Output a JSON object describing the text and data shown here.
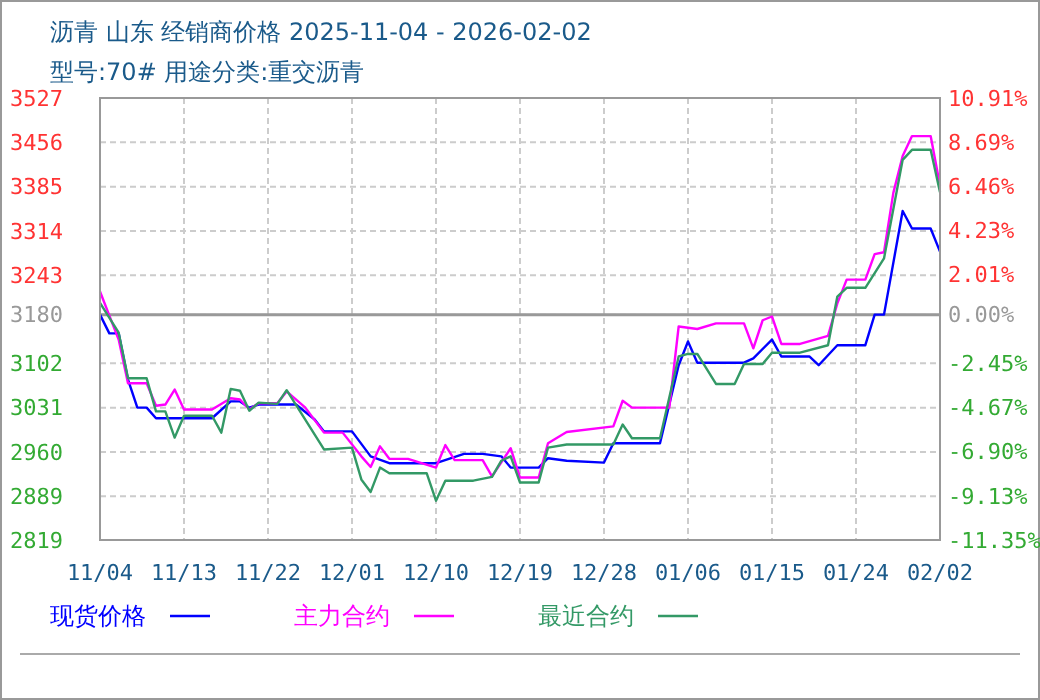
{
  "chart_data": {
    "type": "line",
    "title": "沥青  山东 经销商价格 2025-11-04 - 2026-02-02",
    "subtitle": "型号:70# 用途分类:重交沥青",
    "xlim": [
      "2025-11-04",
      "2026-02-02"
    ],
    "xticks": [
      {
        "value": "2025-11-04",
        "label": "11/04"
      },
      {
        "value": "2025-11-13",
        "label": "11/13"
      },
      {
        "value": "2025-11-22",
        "label": "11/22"
      },
      {
        "value": "2025-12-01",
        "label": "12/01"
      },
      {
        "value": "2025-12-10",
        "label": "12/10"
      },
      {
        "value": "2025-12-19",
        "label": "12/19"
      },
      {
        "value": "2025-12-28",
        "label": "12/28"
      },
      {
        "value": "2026-01-06",
        "label": "01/06"
      },
      {
        "value": "2026-01-15",
        "label": "01/15"
      },
      {
        "value": "2026-01-24",
        "label": "01/24"
      },
      {
        "value": "2026-02-02",
        "label": "02/02"
      }
    ],
    "ylim": [
      2819,
      3527
    ],
    "yticks": [
      2819,
      2889,
      2960,
      3031,
      3102,
      3180,
      3243,
      3314,
      3385,
      3456,
      3527
    ],
    "y2lim": [
      -11.35,
      10.91
    ],
    "y2ticks": [
      {
        "value": -11.35,
        "label": "-11.35%"
      },
      {
        "value": -9.13,
        "label": "-9.13%"
      },
      {
        "value": -6.9,
        "label": "-6.90%"
      },
      {
        "value": -4.67,
        "label": "-4.67%"
      },
      {
        "value": -2.45,
        "label": "-2.45%"
      },
      {
        "value": 0,
        "label": "0.00%"
      },
      {
        "value": 2.01,
        "label": "2.01%"
      },
      {
        "value": 4.23,
        "label": "4.23%"
      },
      {
        "value": 6.46,
        "label": "6.46%"
      },
      {
        "value": 8.69,
        "label": "8.69%"
      },
      {
        "value": 10.91,
        "label": "10.91%"
      }
    ],
    "grid": true,
    "legend": "bottom",
    "marker": "none",
    "line_style": "solid",
    "ref_lines": [
      {
        "axis": "y",
        "value": 3180,
        "color": "#999999"
      }
    ],
    "series": [
      {
        "name": "现货价格",
        "color": "#0000ff",
        "x": [
          "2025-11-04",
          "2025-11-05",
          "2025-11-06",
          "2025-11-07",
          "2025-11-08",
          "2025-11-09",
          "2025-11-10",
          "2025-11-16",
          "2025-11-18",
          "2025-11-19",
          "2025-11-20",
          "2025-11-21",
          "2025-11-25",
          "2025-11-27",
          "2025-11-28",
          "2025-12-01",
          "2025-12-03",
          "2025-12-05",
          "2025-12-10",
          "2025-12-13",
          "2025-12-15",
          "2025-12-17",
          "2025-12-18",
          "2025-12-21",
          "2025-12-22",
          "2025-12-24",
          "2025-12-28",
          "2025-12-29",
          "2026-01-03",
          "2026-01-05",
          "2026-01-06",
          "2026-01-07",
          "2026-01-12",
          "2026-01-13",
          "2026-01-15",
          "2026-01-16",
          "2026-01-19",
          "2026-01-20",
          "2026-01-22",
          "2026-01-25",
          "2026-01-26",
          "2026-01-27",
          "2026-01-29",
          "2026-01-30",
          "2026-02-01",
          "2026-02-02"
        ],
        "values": [
          3180,
          3150,
          3150,
          3076,
          3031,
          3031,
          3014,
          3014,
          3041,
          3041,
          3031,
          3036,
          3036,
          3012,
          2993,
          2993,
          2953,
          2942,
          2942,
          2957,
          2957,
          2953,
          2935,
          2935,
          2950,
          2946,
          2943,
          2974,
          2974,
          3099,
          3137,
          3103,
          3103,
          3110,
          3140,
          3113,
          3113,
          3099,
          3131,
          3131,
          3180,
          3180,
          3346,
          3318,
          3318,
          3281
        ]
      },
      {
        "name": "主力合约",
        "color": "#ff00ff",
        "x": [
          "2025-11-04",
          "2025-11-06",
          "2025-11-07",
          "2025-11-09",
          "2025-11-10",
          "2025-11-11",
          "2025-11-12",
          "2025-11-13",
          "2025-11-16",
          "2025-11-18",
          "2025-11-19",
          "2025-11-20",
          "2025-11-21",
          "2025-11-23",
          "2025-11-24",
          "2025-11-26",
          "2025-11-28",
          "2025-11-30",
          "2025-12-02",
          "2025-12-03",
          "2025-12-04",
          "2025-12-05",
          "2025-12-07",
          "2025-12-10",
          "2025-12-11",
          "2025-12-12",
          "2025-12-15",
          "2025-12-16",
          "2025-12-18",
          "2025-12-19",
          "2025-12-21",
          "2025-12-22",
          "2025-12-24",
          "2025-12-29",
          "2025-12-30",
          "2025-12-31",
          "2026-01-04",
          "2026-01-05",
          "2026-01-07",
          "2026-01-09",
          "2026-01-12",
          "2026-01-13",
          "2026-01-14",
          "2026-01-15",
          "2026-01-16",
          "2026-01-18",
          "2026-01-21",
          "2026-01-22",
          "2026-01-23",
          "2026-01-25",
          "2026-01-26",
          "2026-01-27",
          "2026-01-28",
          "2026-01-29",
          "2026-01-30",
          "2026-02-01",
          "2026-02-02"
        ],
        "values": [
          3217,
          3140,
          3070,
          3070,
          3034,
          3036,
          3060,
          3028,
          3028,
          3046,
          3044,
          3028,
          3038,
          3038,
          3057,
          3031,
          2991,
          2991,
          2953,
          2936,
          2969,
          2949,
          2949,
          2935,
          2971,
          2947,
          2947,
          2921,
          2966,
          2919,
          2919,
          2974,
          2992,
          3001,
          3042,
          3031,
          3031,
          3161,
          3157,
          3166,
          3166,
          3126,
          3171,
          3177,
          3133,
          3133,
          3146,
          3198,
          3236,
          3236,
          3277,
          3280,
          3375,
          3434,
          3466,
          3466,
          3387
        ]
      },
      {
        "name": "最近合约",
        "color": "#339966",
        "x": [
          "2025-11-04",
          "2025-11-06",
          "2025-11-07",
          "2025-11-09",
          "2025-11-10",
          "2025-11-11",
          "2025-11-12",
          "2025-11-13",
          "2025-11-16",
          "2025-11-17",
          "2025-11-18",
          "2025-11-19",
          "2025-11-20",
          "2025-11-21",
          "2025-11-23",
          "2025-11-24",
          "2025-11-28",
          "2025-12-01",
          "2025-12-02",
          "2025-12-03",
          "2025-12-04",
          "2025-12-05",
          "2025-12-09",
          "2025-12-10",
          "2025-12-11",
          "2025-12-14",
          "2025-12-16",
          "2025-12-17",
          "2025-12-18",
          "2025-12-19",
          "2025-12-21",
          "2025-12-22",
          "2025-12-24",
          "2025-12-29",
          "2025-12-30",
          "2025-12-31",
          "2026-01-03",
          "2026-01-05",
          "2026-01-06",
          "2026-01-07",
          "2026-01-09",
          "2026-01-11",
          "2026-01-12",
          "2026-01-14",
          "2026-01-15",
          "2026-01-18",
          "2026-01-21",
          "2026-01-22",
          "2026-01-23",
          "2026-01-25",
          "2026-01-27",
          "2026-01-29",
          "2026-01-30",
          "2026-02-01",
          "2026-02-02"
        ],
        "values": [
          3199,
          3151,
          3078,
          3078,
          3025,
          3025,
          2983,
          3018,
          3018,
          2991,
          3061,
          3058,
          3026,
          3039,
          3037,
          3059,
          2964,
          2967,
          2916,
          2896,
          2935,
          2926,
          2926,
          2882,
          2914,
          2914,
          2920,
          2946,
          2953,
          2911,
          2911,
          2967,
          2972,
          2972,
          3004,
          2982,
          2982,
          3113,
          3117,
          3117,
          3069,
          3069,
          3101,
          3101,
          3119,
          3119,
          3131,
          3209,
          3223,
          3223,
          3270,
          3428,
          3444,
          3444,
          3376
        ]
      }
    ]
  }
}
